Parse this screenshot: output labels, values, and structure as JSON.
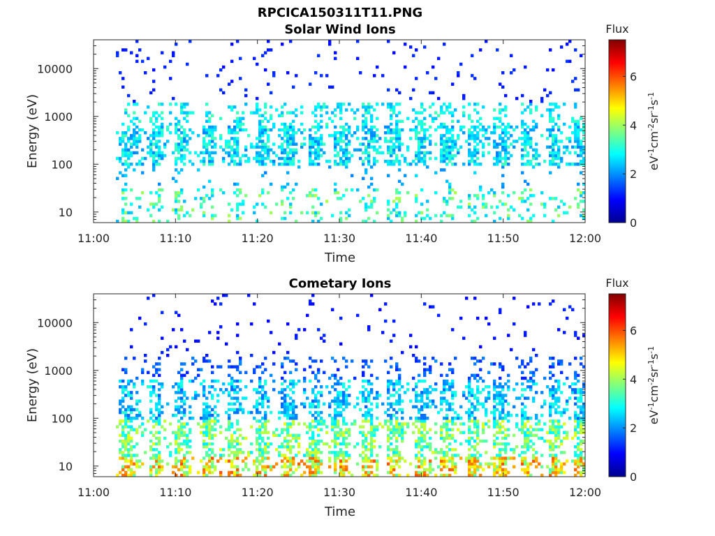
{
  "figure_title": "RPCICA150311T11.PNG",
  "chart_data": [
    {
      "type": "heatmap",
      "title": "Solar Wind Ions",
      "xlabel": "Time",
      "ylabel": "Energy (eV)",
      "x_ticks": [
        "11:00",
        "11:10",
        "11:20",
        "11:30",
        "11:40",
        "11:50",
        "12:00"
      ],
      "xlim_minutes": [
        0,
        60
      ],
      "y_scale": "log",
      "y_ticks": [
        "10",
        "100",
        "1000",
        "10000"
      ],
      "ylim": [
        6,
        40000
      ],
      "colorbar": {
        "title": "Flux",
        "label": "eV-1cm-2sr-1s-1",
        "ticks": [
          "0",
          "2",
          "4",
          "6"
        ],
        "range": [
          0,
          7.5
        ],
        "colormap": "jet"
      },
      "description_profile": "bursty spectrogram with main flux 100-2000 eV, sparse low-energy streaks"
    },
    {
      "type": "heatmap",
      "title": "Cometary Ions",
      "xlabel": "Time",
      "ylabel": "Energy (eV)",
      "x_ticks": [
        "11:00",
        "11:10",
        "11:20",
        "11:30",
        "11:40",
        "11:50",
        "12:00"
      ],
      "xlim_minutes": [
        0,
        60
      ],
      "y_scale": "log",
      "y_ticks": [
        "10",
        "100",
        "1000",
        "10000"
      ],
      "ylim": [
        6,
        40000
      ],
      "colorbar": {
        "title": "Flux",
        "label": "eV-1cm-2sr-1s-1",
        "ticks": [
          "0",
          "2",
          "4",
          "6"
        ],
        "range": [
          0,
          7.5
        ],
        "colormap": "jet"
      },
      "description_profile": "bursty spectrogram with flux rising toward low energies, peaks near 6-10 eV"
    }
  ]
}
